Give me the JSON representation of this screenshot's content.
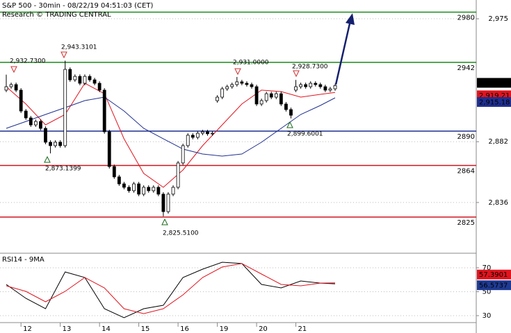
{
  "chart_data": [
    {
      "type": "candlestick",
      "title": "S&P 500 - 30min - 08/22/19 04:51:03 (CET)",
      "subtitle": "Research © TRADING CENTRAL",
      "open": [
        2921.0,
        2923.6,
        2925.2,
        2921.0,
        2905.2,
        2900.0,
        2894.7,
        2897.3,
        2892.1,
        2881.6,
        2879.0,
        2881.6,
        2879.0,
        2936.7,
        2928.8,
        2931.4,
        2926.2,
        2931.4,
        2928.8,
        2926.2,
        2921.0,
        2889.5,
        2863.2,
        2855.4,
        2850.1,
        2847.5,
        2844.9,
        2850.1,
        2842.3,
        2847.5,
        2844.9,
        2847.5,
        2842.3,
        2829.1,
        2842.3,
        2847.5,
        2865.9,
        2879.0,
        2886.9,
        2885.3,
        2888.4,
        2889.5,
        2888.0,
        2913.0,
        2915.7,
        2922.0,
        2923.6,
        2925.2,
        2927.3,
        2926.2,
        2925.2,
        2923.6,
        2910.5,
        2913.1,
        2918.3,
        2915.7,
        2918.3,
        2910.5,
        2906.3,
        2921.0,
        2923.6,
        2925.2,
        2923.6,
        2926.2,
        2925.2,
        2923.6,
        2921.0,
        2922.0
      ],
      "high": [
        2932.73,
        2926.7,
        2926.7,
        2922.5,
        2906.7,
        2901.5,
        2898.8,
        2898.8,
        2893.6,
        2883.1,
        2883.1,
        2883.1,
        2943.31,
        2938.2,
        2932.9,
        2932.9,
        2932.9,
        2932.9,
        2930.3,
        2927.7,
        2922.5,
        2891.0,
        2864.7,
        2856.9,
        2851.6,
        2849.0,
        2851.6,
        2851.6,
        2849.0,
        2849.0,
        2849.0,
        2849.0,
        2843.8,
        2843.8,
        2849.0,
        2867.4,
        2880.5,
        2888.4,
        2888.4,
        2889.9,
        2891.0,
        2891.0,
        2889.9,
        2917.2,
        2923.5,
        2925.1,
        2926.7,
        2931.0,
        2928.8,
        2927.7,
        2926.7,
        2925.1,
        2914.6,
        2919.8,
        2919.8,
        2919.8,
        2919.8,
        2912.0,
        2907.8,
        2928.73,
        2926.7,
        2926.7,
        2927.7,
        2927.7,
        2926.7,
        2925.1,
        2923.5,
        2925.9
      ],
      "low": [
        2919.5,
        2922.1,
        2919.5,
        2903.7,
        2898.5,
        2893.2,
        2893.2,
        2890.6,
        2880.1,
        2873.14,
        2877.5,
        2877.5,
        2877.5,
        2927.3,
        2927.3,
        2924.7,
        2924.7,
        2927.3,
        2924.7,
        2919.5,
        2888.0,
        2861.7,
        2853.9,
        2848.6,
        2846.0,
        2843.4,
        2843.4,
        2840.8,
        2840.8,
        2843.4,
        2843.4,
        2840.8,
        2825.51,
        2827.6,
        2840.8,
        2846.0,
        2864.4,
        2877.5,
        2883.8,
        2883.8,
        2886.9,
        2886.5,
        2886.5,
        2911.5,
        2914.2,
        2920.5,
        2922.1,
        2923.7,
        2924.7,
        2923.7,
        2922.1,
        2909.0,
        2909.0,
        2911.6,
        2914.2,
        2914.2,
        2909.0,
        2904.8,
        2899.6,
        2919.5,
        2922.1,
        2922.1,
        2922.1,
        2923.7,
        2922.1,
        2919.5,
        2919.5,
        2920.5
      ],
      "close": [
        2923.6,
        2925.2,
        2921.0,
        2905.2,
        2900.0,
        2894.7,
        2897.3,
        2892.1,
        2881.6,
        2879.0,
        2881.6,
        2879.0,
        2936.7,
        2928.8,
        2931.4,
        2926.2,
        2931.4,
        2928.8,
        2926.2,
        2921.0,
        2889.5,
        2863.2,
        2855.4,
        2850.1,
        2847.5,
        2844.9,
        2850.1,
        2842.3,
        2847.5,
        2844.9,
        2847.5,
        2842.3,
        2829.1,
        2842.3,
        2847.5,
        2865.9,
        2879.0,
        2886.9,
        2885.3,
        2888.4,
        2889.5,
        2888.0,
        2888.4,
        2915.7,
        2922.0,
        2923.6,
        2925.2,
        2927.3,
        2926.2,
        2925.2,
        2923.6,
        2910.5,
        2913.1,
        2918.3,
        2915.7,
        2918.3,
        2910.5,
        2906.3,
        2902.0,
        2923.6,
        2925.2,
        2923.6,
        2926.2,
        2925.2,
        2923.6,
        2921.0,
        2922.0,
        2924.43
      ],
      "close_last_label": "2,924.43",
      "series": [
        {
          "color": "#e0141e",
          "x": [
            0,
            4,
            8,
            12,
            16,
            20,
            24,
            28,
            32,
            36,
            40,
            44,
            48,
            52,
            56,
            60,
            64,
            67
          ],
          "values": [
            2923.6,
            2910.5,
            2894.7,
            2902.6,
            2926.2,
            2918.3,
            2884.2,
            2858.0,
            2847.5,
            2860.6,
            2879.0,
            2894.7,
            2910.5,
            2921.0,
            2919.9,
            2915.7,
            2917.8,
            2919.21
          ],
          "last_label": "2,919.21"
        },
        {
          "color": "#1f2f8f",
          "x": [
            0,
            4,
            8,
            12,
            16,
            20,
            24,
            28,
            32,
            36,
            40,
            44,
            48,
            52,
            56,
            60,
            64,
            67
          ],
          "values": [
            2892.1,
            2897.3,
            2902.6,
            2907.8,
            2913.1,
            2915.7,
            2905.2,
            2892.1,
            2884.2,
            2876.4,
            2872.7,
            2871.1,
            2872.7,
            2881.6,
            2892.1,
            2902.6,
            2909.4,
            2915.18
          ],
          "last_label": "2,915.18"
        }
      ],
      "levels": [
        {
          "value": 2980,
          "color": "#1a8a1a"
        },
        {
          "value": 2942,
          "color": "#1a8a1a"
        },
        {
          "value": 2890,
          "color": "#1f2f8f"
        },
        {
          "value": 2864,
          "color": "#d0141e"
        },
        {
          "value": 2825,
          "color": "#d0141e"
        }
      ],
      "annotations": [
        "2,932.7300",
        "2,943.3101",
        "2,931.0000",
        "2,928.7300",
        "2,873.1399",
        "2,825.5100",
        "2,899.6001"
      ],
      "ylim": [
        2799.2,
        2989.2
      ],
      "yticks": [
        {
          "value": 2975,
          "label": "2,975"
        },
        {
          "value": 2882,
          "label": "2,882"
        },
        {
          "value": 2836,
          "label": "2,836"
        }
      ],
      "xlim": [
        -1.275,
        95.75
      ],
      "grid": true
    },
    {
      "type": "line",
      "title": "RSI14 - 9MA",
      "x": [
        0,
        4,
        8,
        12,
        16,
        20,
        24,
        28,
        32,
        36,
        40,
        44,
        48,
        52,
        56,
        60,
        64,
        67
      ],
      "series": [
        {
          "color": "#000000",
          "box_color": "#1f3a93",
          "values": [
            56.1,
            44.5,
            35.8,
            66.5,
            61.9,
            35.8,
            28.3,
            35.8,
            38.7,
            61.9,
            68.8,
            74.6,
            73.5,
            56.1,
            53.2,
            59.0,
            57.2,
            56.5737
          ],
          "last_label": "56.5737"
        },
        {
          "color": "#e0141e",
          "box_color": "#e0141e",
          "values": [
            54.9,
            50.3,
            41.6,
            50.3,
            61.9,
            53.2,
            35.8,
            31.7,
            35.8,
            47.4,
            61.9,
            70.6,
            73.5,
            64.8,
            56.1,
            54.9,
            57.2,
            57.3901
          ],
          "last_label": "57.3901"
        }
      ],
      "ylim": [
        24.2,
        81
      ],
      "yticks": [
        70,
        50,
        30
      ],
      "xlim": [
        -1.275,
        95.75
      ],
      "xticks": [
        {
          "value": 3,
          "label": "12"
        },
        {
          "value": 11,
          "label": "13"
        },
        {
          "value": 19,
          "label": "14"
        },
        {
          "value": 27,
          "label": "15"
        },
        {
          "value": 35,
          "label": "16"
        },
        {
          "value": 43,
          "label": "19"
        },
        {
          "value": 51,
          "label": "20"
        },
        {
          "value": 59,
          "label": "21"
        }
      ],
      "grid": true
    }
  ]
}
